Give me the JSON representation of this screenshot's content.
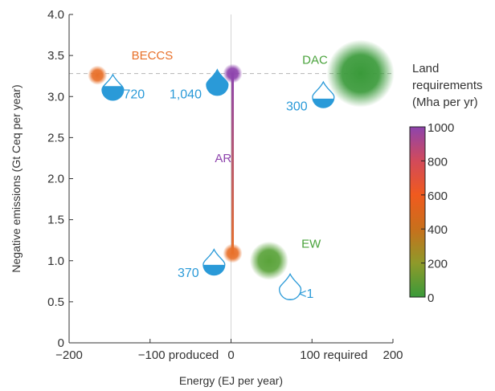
{
  "chart_data": {
    "type": "scatter",
    "xlabel": "Energy (EJ per year)",
    "ylabel": "Negative emissions (Gt Ceq per year)",
    "xlim": [
      -200,
      200
    ],
    "ylim": [
      0,
      4.0
    ],
    "x_ticks": [
      {
        "value": -200,
        "label": "−200"
      },
      {
        "value": -100,
        "label": "−100 produced"
      },
      {
        "value": 0,
        "label": "0"
      },
      {
        "value": 100,
        "label": "100 required"
      },
      {
        "value": 200,
        "label": "200"
      }
    ],
    "y_ticks": [
      {
        "value": 0,
        "label": "0"
      },
      {
        "value": 0.5,
        "label": "0.5"
      },
      {
        "value": 1.0,
        "label": "1.0"
      },
      {
        "value": 1.5,
        "label": "1.5"
      },
      {
        "value": 2.0,
        "label": "2.0"
      },
      {
        "value": 2.5,
        "label": "2.5"
      },
      {
        "value": 3.0,
        "label": "3.0"
      },
      {
        "value": 3.5,
        "label": "3.5"
      },
      {
        "value": 4.0,
        "label": "4.0"
      }
    ],
    "reference_line_y": 3.28,
    "reference_line_x": 0,
    "points": [
      {
        "label": "BECCS",
        "x": -165,
        "y": 3.26,
        "land": 400,
        "color": "#e8702a",
        "bubble_size": "small"
      },
      {
        "label": "AR (high)",
        "x": 2,
        "y": 3.28,
        "land": 1000,
        "color": "#8e44ad",
        "bubble_size": "small"
      },
      {
        "label": "AR (low)",
        "x": 2,
        "y": 1.09,
        "land": 320,
        "color": "#e8702a",
        "bubble_size": "small"
      },
      {
        "label": "DAC",
        "x": 160,
        "y": 3.28,
        "land": 0,
        "color": "#3a9a3a",
        "bubble_size": "large"
      },
      {
        "label": "EW",
        "x": 47,
        "y": 1.0,
        "land": 0,
        "color": "#5aa33a",
        "bubble_size": "medium"
      }
    ],
    "series_labels": [
      {
        "text": "BECCS",
        "x": -123,
        "y": 3.45,
        "color": "#e8702a"
      },
      {
        "text": "DAC",
        "x": 88,
        "y": 3.4,
        "color": "#4aa33c"
      },
      {
        "text": "AR",
        "x": -20,
        "y": 2.2,
        "color": "#8e44ad"
      },
      {
        "text": "EW",
        "x": 87,
        "y": 1.16,
        "color": "#4aa33c"
      }
    ],
    "water": [
      {
        "value": "720",
        "drop_x": -146,
        "drop_y": 3.08,
        "label_x": -133,
        "label_y": 2.98,
        "fill": 0.55
      },
      {
        "value": "1,040",
        "drop_x": -17,
        "drop_y": 3.14,
        "label_x": -76,
        "label_y": 2.98,
        "fill": 0.95
      },
      {
        "value": "300",
        "drop_x": 114,
        "drop_y": 2.99,
        "label_x": 68,
        "label_y": 2.83,
        "fill": 0.35
      },
      {
        "value": "370",
        "drop_x": -21,
        "drop_y": 0.95,
        "label_x": -66,
        "label_y": 0.8,
        "fill": 0.4
      },
      {
        "value": "<1",
        "drop_x": 73,
        "drop_y": 0.65,
        "label_x": 84,
        "label_y": 0.55,
        "fill": 0.03
      }
    ],
    "colorbar": {
      "title": [
        "Land",
        "requirements",
        "(Mha per yr)"
      ],
      "ticks": [
        {
          "value": 0,
          "label": "0"
        },
        {
          "value": 200,
          "label": "200"
        },
        {
          "value": 400,
          "label": "400"
        },
        {
          "value": 600,
          "label": "600"
        },
        {
          "value": 800,
          "label": "800"
        },
        {
          "value": 1000,
          "label": "1000"
        }
      ],
      "range": [
        0,
        1000
      ],
      "stops": [
        "#3a9a3a",
        "#8f9a2a",
        "#c8701c",
        "#f05a1e",
        "#d24a5a",
        "#8e44ad"
      ]
    }
  }
}
